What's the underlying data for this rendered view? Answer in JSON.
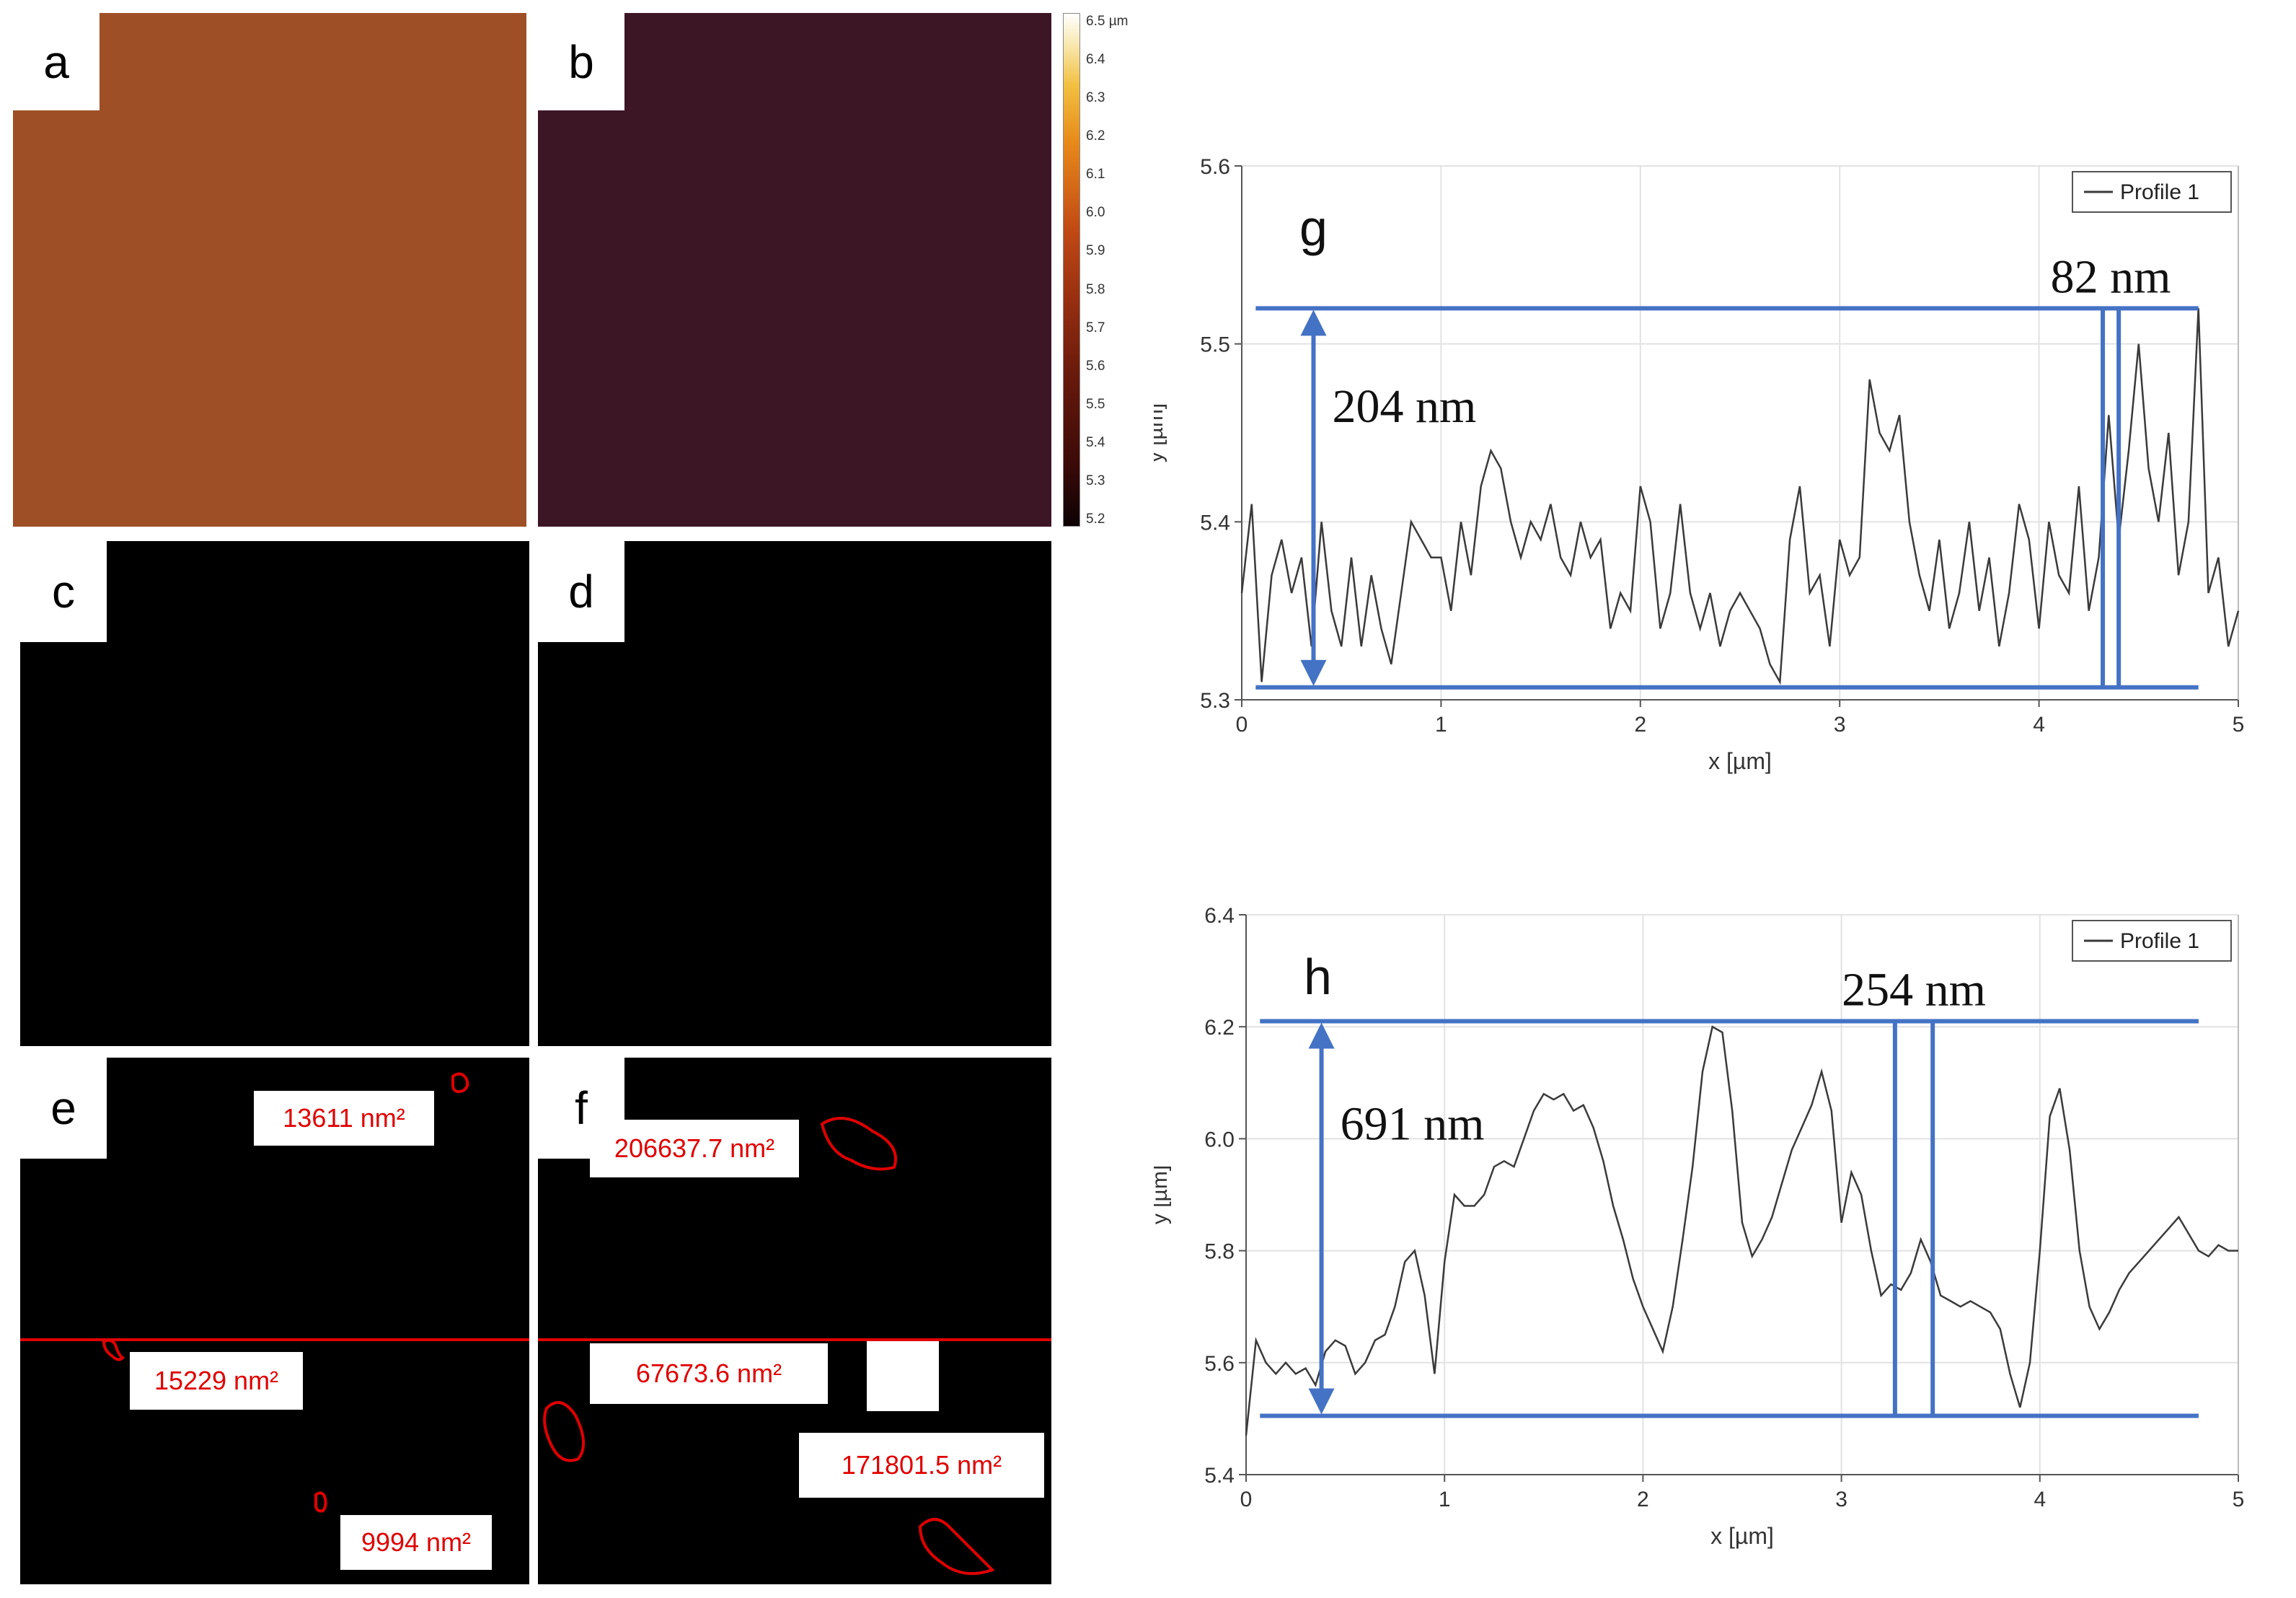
{
  "panels": {
    "a": {
      "label": "a"
    },
    "b": {
      "label": "b"
    },
    "c": {
      "label": "c"
    },
    "d": {
      "label": "d"
    },
    "e": {
      "label": "e"
    },
    "f": {
      "label": "f"
    }
  },
  "colorbar": {
    "ticks": [
      "6.5 µm",
      "6.4",
      "6.3",
      "6.2",
      "6.1",
      "6.0",
      "5.9",
      "5.8",
      "5.7",
      "5.6",
      "5.5",
      "5.4",
      "5.3",
      "5.2"
    ],
    "colors": {
      "low": "#0d0204",
      "mid1": "#6a1a0c",
      "mid2": "#c24a14",
      "mid3": "#e88a1a",
      "high": "#ffffff"
    }
  },
  "annotations": {
    "e": [
      "13611 nm²",
      "15229 nm²",
      "9994 nm²"
    ],
    "f": [
      "206637.7 nm²",
      "67673.6 nm²",
      "171801.5 nm²"
    ],
    "line_color": "#e00000"
  },
  "chart_data": [
    {
      "type": "line",
      "panel_label": "g",
      "legend": "Profile 1",
      "xlabel": "x [µm]",
      "ylabel": "y [µm]",
      "xlim": [
        0,
        5
      ],
      "ylim": [
        5.3,
        5.6
      ],
      "xticks": [
        "0",
        "1",
        "2",
        "3",
        "4",
        "5"
      ],
      "yticks": [
        "5.3",
        "5.4",
        "5.5",
        "5.6"
      ],
      "xtick_values": [
        0,
        1,
        2,
        3,
        4,
        5
      ],
      "ytick_values": [
        5.3,
        5.4,
        5.5,
        5.6
      ],
      "annotations": {
        "height": "204 nm",
        "width": "82 nm"
      },
      "marker_levels": {
        "top": 5.52,
        "bottom": 5.307,
        "arrow_x": 0.36,
        "band_x": [
          4.32,
          4.4
        ],
        "line_x_end": 4.8
      },
      "series": [
        {
          "name": "Profile 1",
          "x": [
            0,
            0.05,
            0.1,
            0.15,
            0.2,
            0.25,
            0.3,
            0.35,
            0.4,
            0.45,
            0.5,
            0.55,
            0.6,
            0.65,
            0.7,
            0.75,
            0.8,
            0.85,
            0.9,
            0.95,
            1.0,
            1.05,
            1.1,
            1.15,
            1.2,
            1.25,
            1.3,
            1.35,
            1.4,
            1.45,
            1.5,
            1.55,
            1.6,
            1.65,
            1.7,
            1.75,
            1.8,
            1.85,
            1.9,
            1.95,
            2.0,
            2.05,
            2.1,
            2.15,
            2.2,
            2.25,
            2.3,
            2.35,
            2.4,
            2.45,
            2.5,
            2.55,
            2.6,
            2.65,
            2.7,
            2.75,
            2.8,
            2.85,
            2.9,
            2.95,
            3.0,
            3.05,
            3.1,
            3.15,
            3.2,
            3.25,
            3.3,
            3.35,
            3.4,
            3.45,
            3.5,
            3.55,
            3.6,
            3.65,
            3.7,
            3.75,
            3.8,
            3.85,
            3.9,
            3.95,
            4.0,
            4.05,
            4.1,
            4.15,
            4.2,
            4.25,
            4.3,
            4.35,
            4.4,
            4.45,
            4.5,
            4.55,
            4.6,
            4.65,
            4.7,
            4.75,
            4.8,
            4.85,
            4.9,
            4.95,
            5.0
          ],
          "y": [
            5.36,
            5.41,
            5.31,
            5.37,
            5.39,
            5.36,
            5.38,
            5.33,
            5.4,
            5.35,
            5.33,
            5.38,
            5.33,
            5.37,
            5.34,
            5.32,
            5.36,
            5.4,
            5.39,
            5.38,
            5.38,
            5.35,
            5.4,
            5.37,
            5.42,
            5.44,
            5.43,
            5.4,
            5.38,
            5.4,
            5.39,
            5.41,
            5.38,
            5.37,
            5.4,
            5.38,
            5.39,
            5.34,
            5.36,
            5.35,
            5.42,
            5.4,
            5.34,
            5.36,
            5.41,
            5.36,
            5.34,
            5.36,
            5.33,
            5.35,
            5.36,
            5.35,
            5.34,
            5.32,
            5.31,
            5.39,
            5.42,
            5.36,
            5.37,
            5.33,
            5.39,
            5.37,
            5.38,
            5.48,
            5.45,
            5.44,
            5.46,
            5.4,
            5.37,
            5.35,
            5.39,
            5.34,
            5.36,
            5.4,
            5.35,
            5.38,
            5.33,
            5.36,
            5.41,
            5.39,
            5.34,
            5.4,
            5.37,
            5.36,
            5.42,
            5.35,
            5.38,
            5.46,
            5.39,
            5.44,
            5.5,
            5.43,
            5.4,
            5.45,
            5.37,
            5.4,
            5.52,
            5.36,
            5.38,
            5.33,
            5.35
          ]
        }
      ]
    },
    {
      "type": "line",
      "panel_label": "h",
      "legend": "Profile 1",
      "xlabel": "x [µm]",
      "ylabel": "y [µm]",
      "xlim": [
        0,
        5
      ],
      "ylim": [
        5.4,
        6.4
      ],
      "xticks": [
        "0",
        "1",
        "2",
        "3",
        "4",
        "5"
      ],
      "yticks": [
        "5.4",
        "5.6",
        "5.8",
        "6.0",
        "6.2",
        "6.4"
      ],
      "xtick_values": [
        0,
        1,
        2,
        3,
        4,
        5
      ],
      "ytick_values": [
        5.4,
        5.6,
        5.8,
        6.0,
        6.2,
        6.4
      ],
      "annotations": {
        "height": "691 nm",
        "width": "254 nm"
      },
      "marker_levels": {
        "top": 6.21,
        "bottom": 5.505,
        "arrow_x": 0.38,
        "band_x": [
          3.27,
          3.46
        ],
        "line_x_end": 4.8
      },
      "series": [
        {
          "name": "Profile 1",
          "x": [
            0,
            0.05,
            0.1,
            0.15,
            0.2,
            0.25,
            0.3,
            0.35,
            0.4,
            0.45,
            0.5,
            0.55,
            0.6,
            0.65,
            0.7,
            0.75,
            0.8,
            0.85,
            0.9,
            0.95,
            1.0,
            1.05,
            1.1,
            1.15,
            1.2,
            1.25,
            1.3,
            1.35,
            1.4,
            1.45,
            1.5,
            1.55,
            1.6,
            1.65,
            1.7,
            1.75,
            1.8,
            1.85,
            1.9,
            1.95,
            2.0,
            2.05,
            2.1,
            2.15,
            2.2,
            2.25,
            2.3,
            2.35,
            2.4,
            2.45,
            2.5,
            2.55,
            2.6,
            2.65,
            2.7,
            2.75,
            2.8,
            2.85,
            2.9,
            2.95,
            3.0,
            3.05,
            3.1,
            3.15,
            3.2,
            3.25,
            3.3,
            3.35,
            3.4,
            3.45,
            3.5,
            3.55,
            3.6,
            3.65,
            3.7,
            3.75,
            3.8,
            3.85,
            3.9,
            3.95,
            4.0,
            4.05,
            4.1,
            4.15,
            4.2,
            4.25,
            4.3,
            4.35,
            4.4,
            4.45,
            4.5,
            4.55,
            4.6,
            4.65,
            4.7,
            4.75,
            4.8,
            4.85,
            4.9,
            4.95,
            5.0
          ],
          "y": [
            5.47,
            5.64,
            5.6,
            5.58,
            5.6,
            5.58,
            5.59,
            5.56,
            5.62,
            5.64,
            5.63,
            5.58,
            5.6,
            5.64,
            5.65,
            5.7,
            5.78,
            5.8,
            5.72,
            5.58,
            5.78,
            5.9,
            5.88,
            5.88,
            5.9,
            5.95,
            5.96,
            5.95,
            6.0,
            6.05,
            6.08,
            6.07,
            6.08,
            6.05,
            6.06,
            6.02,
            5.96,
            5.88,
            5.82,
            5.75,
            5.7,
            5.66,
            5.62,
            5.7,
            5.82,
            5.95,
            6.12,
            6.2,
            6.19,
            6.05,
            5.85,
            5.79,
            5.82,
            5.86,
            5.92,
            5.98,
            6.02,
            6.06,
            6.12,
            6.05,
            5.85,
            5.94,
            5.9,
            5.8,
            5.72,
            5.74,
            5.73,
            5.76,
            5.82,
            5.78,
            5.72,
            5.71,
            5.7,
            5.71,
            5.7,
            5.69,
            5.66,
            5.58,
            5.52,
            5.6,
            5.8,
            6.04,
            6.09,
            5.98,
            5.8,
            5.7,
            5.66,
            5.69,
            5.73,
            5.76,
            5.78,
            5.8,
            5.82,
            5.84,
            5.86,
            5.83,
            5.8,
            5.79,
            5.81,
            5.8,
            5.8
          ]
        }
      ]
    }
  ]
}
